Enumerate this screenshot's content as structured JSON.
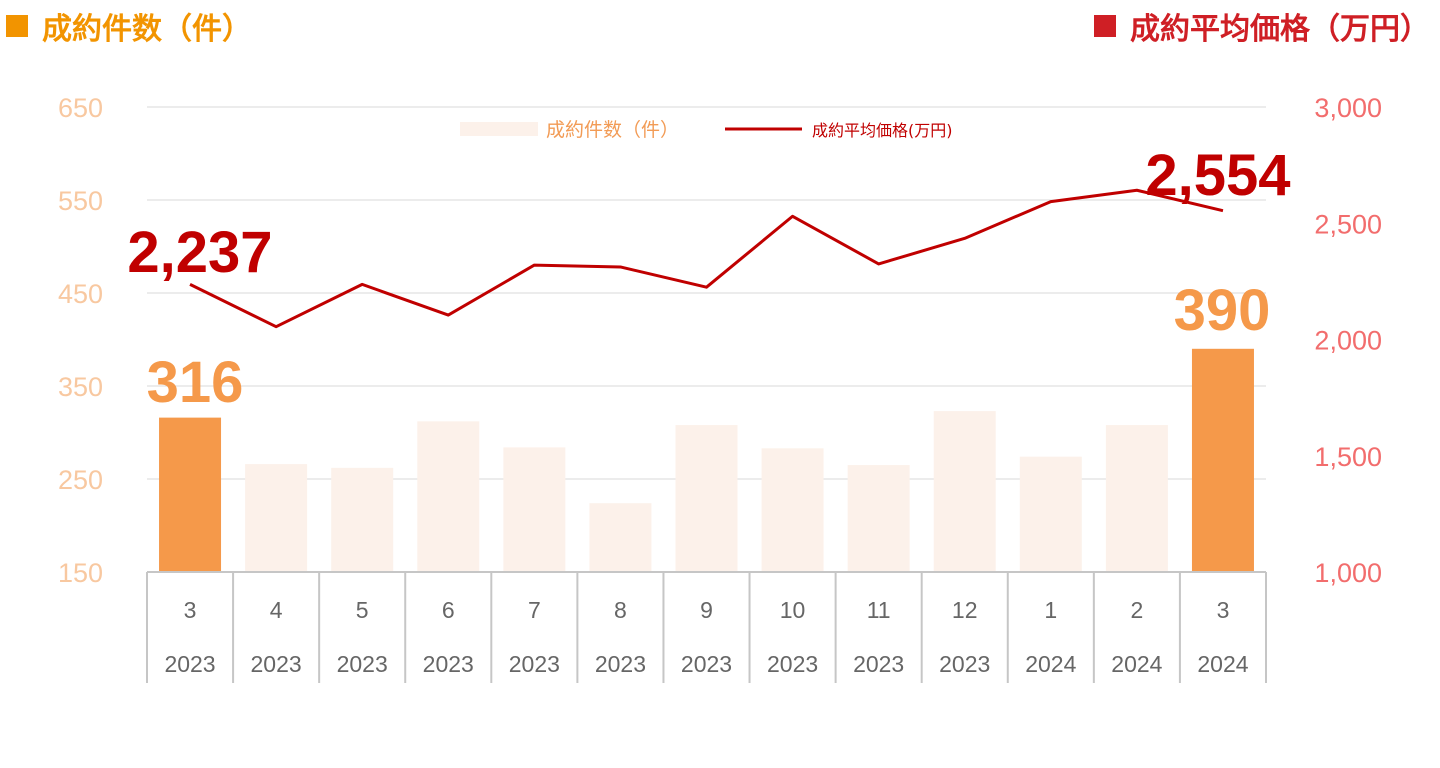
{
  "titles": {
    "left": "成約件数（件）",
    "right": "成約平均価格（万円）"
  },
  "colors": {
    "left_title": "#f29400",
    "right_title": "#cf1f25",
    "bar_highlight": "#f5994a",
    "bar_normal": "#fcf1ea",
    "line": "#c00000",
    "left_ticks": "#f8c8a0",
    "right_ticks": "#f26d6d",
    "grid": "#d9d9d9",
    "axis": "#c6c6c6",
    "callout_bar": "#f5994a",
    "callout_line": "#c00000",
    "legend_bar_text": "#f29b55",
    "legend_line_text": "#c00000"
  },
  "legend": {
    "bar_label": "成約件数（件）",
    "line_label": "成約平均価格(万円)"
  },
  "chart_data": {
    "type": "bar+line",
    "categories": [
      {
        "month": "3",
        "year": "2023"
      },
      {
        "month": "4",
        "year": "2023"
      },
      {
        "month": "5",
        "year": "2023"
      },
      {
        "month": "6",
        "year": "2023"
      },
      {
        "month": "7",
        "year": "2023"
      },
      {
        "month": "8",
        "year": "2023"
      },
      {
        "month": "9",
        "year": "2023"
      },
      {
        "month": "10",
        "year": "2023"
      },
      {
        "month": "11",
        "year": "2023"
      },
      {
        "month": "12",
        "year": "2023"
      },
      {
        "month": "1",
        "year": "2024"
      },
      {
        "month": "2",
        "year": "2024"
      },
      {
        "month": "3",
        "year": "2024"
      }
    ],
    "bars": {
      "name": "成約件数（件）",
      "axis": "left",
      "values": [
        316,
        266,
        262,
        312,
        284,
        224,
        308,
        283,
        265,
        323,
        274,
        308,
        390
      ],
      "highlight": [
        true,
        false,
        false,
        false,
        false,
        false,
        false,
        false,
        false,
        false,
        false,
        false,
        true
      ]
    },
    "line": {
      "name": "成約平均価格(万円)",
      "axis": "right",
      "values": [
        2237,
        2055,
        2237,
        2105,
        2320,
        2312,
        2225,
        2530,
        2325,
        2435,
        2593,
        2642,
        2554
      ]
    },
    "left_axis": {
      "ylim": [
        150,
        650
      ],
      "ticks": [
        "150",
        "250",
        "350",
        "450",
        "550",
        "650"
      ]
    },
    "right_axis": {
      "ylim": [
        1000,
        3000
      ],
      "ticks": [
        "1,000",
        "1,500",
        "2,000",
        "2,500",
        "3,000"
      ]
    },
    "callouts": {
      "bar_first": "316",
      "bar_last": "390",
      "line_first": "2,237",
      "line_last": "2,554"
    },
    "grid": true
  }
}
